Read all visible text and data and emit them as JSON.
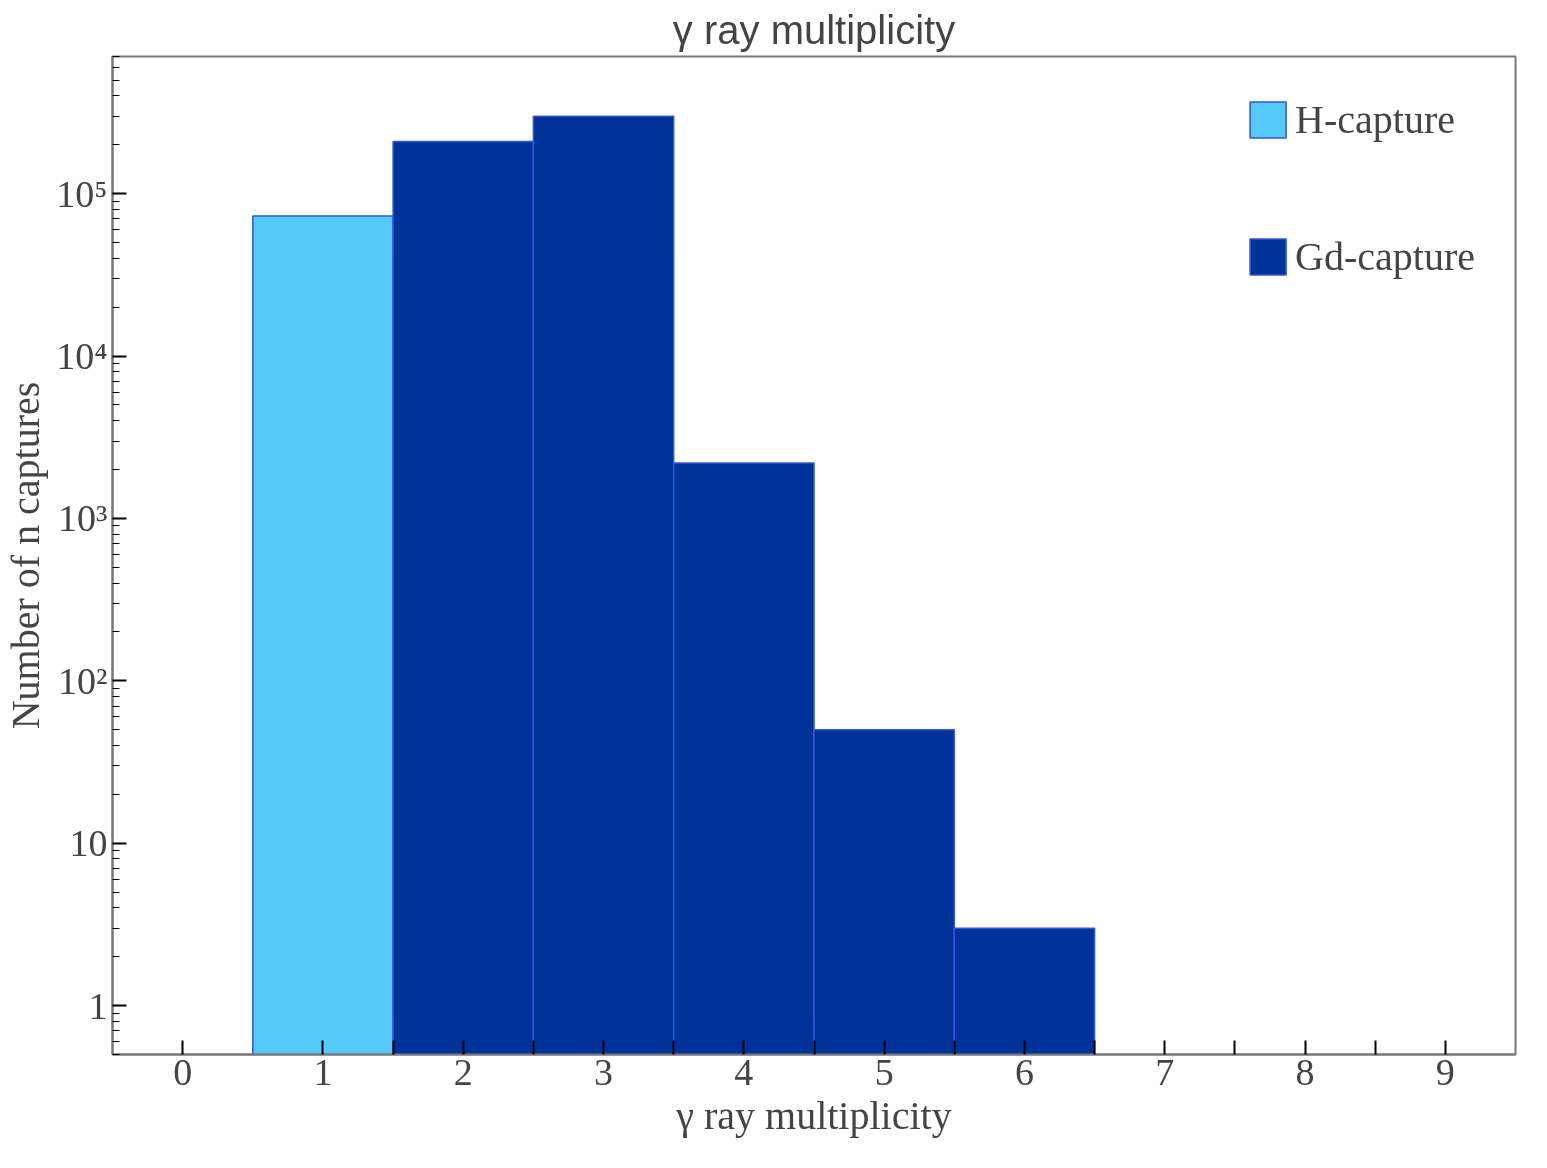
{
  "chart_data": {
    "type": "bar",
    "title": "γ ray multiplicity",
    "xlabel": "γ ray multiplicity",
    "ylabel": "Number of n captures",
    "series": [
      {
        "name": "H-capture",
        "color": "#56c8f5",
        "x": [
          1
        ],
        "values": [
          73000
        ]
      },
      {
        "name": "Gd-capture",
        "color": "#003399",
        "x": [
          2,
          3,
          4,
          5,
          6
        ],
        "values": [
          210000,
          300000,
          2200,
          50,
          3
        ]
      }
    ],
    "xlim": [
      -0.5,
      9.5
    ],
    "xticks": [
      0,
      1,
      2,
      3,
      4,
      5,
      6,
      7,
      8,
      9,
      {
        "value": 1.5,
        "label": null
      },
      {
        "value": 2.5,
        "label": null
      },
      {
        "value": 3.5,
        "label": null
      },
      {
        "value": 4.5,
        "label": null
      },
      {
        "value": 5.5,
        "label": null
      },
      {
        "value": 6.5,
        "label": null
      },
      {
        "value": 7.5,
        "label": null
      },
      {
        "value": 8.5,
        "label": null
      }
    ],
    "ylim": [
      0.5,
      700000
    ],
    "log": "y",
    "yticks": [
      1,
      10,
      {
        "value": 100,
        "label": "10²"
      },
      {
        "value": 1000,
        "label": "10³"
      },
      {
        "value": 10000,
        "label": "10⁴"
      },
      {
        "value": 100000,
        "label": "10⁵"
      }
    ],
    "grid": false,
    "legend": "top right"
  }
}
